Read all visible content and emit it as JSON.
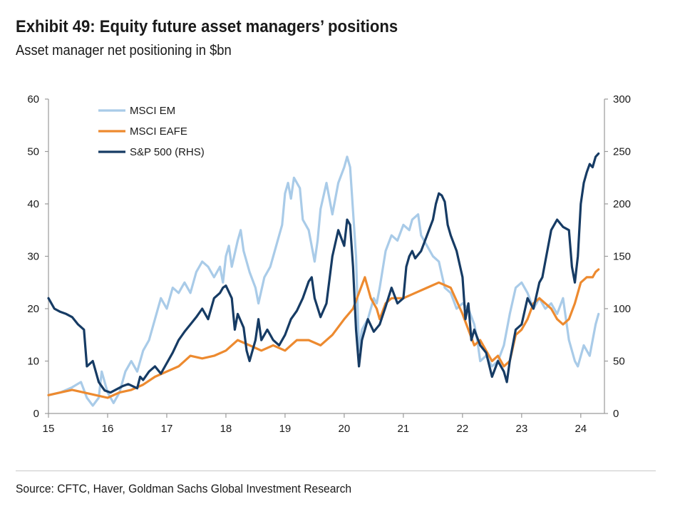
{
  "header": {
    "title": "Exhibit 49: Equity future asset managers’ positions",
    "subtitle": "Asset manager net positioning in $bn"
  },
  "footer": {
    "source": "Source: CFTC, Haver, Goldman Sachs Global Investment Research"
  },
  "chart_data": {
    "type": "line",
    "title": "Exhibit 49: Equity future asset managers’ positions",
    "subtitle": "Asset manager net positioning in $bn",
    "xlabel": "",
    "ylabel": "",
    "x_ticks": [
      "15",
      "16",
      "17",
      "18",
      "19",
      "20",
      "21",
      "22",
      "23",
      "24"
    ],
    "x_range": [
      15,
      24.4
    ],
    "y_left": {
      "range": [
        0,
        60
      ],
      "ticks": [
        "0",
        "10",
        "20",
        "30",
        "40",
        "50",
        "60"
      ]
    },
    "y_right": {
      "range": [
        0,
        300
      ],
      "ticks": [
        "0",
        "50",
        "100",
        "150",
        "200",
        "250",
        "300"
      ]
    },
    "legend": [
      "MSCI EM",
      "MSCI EAFE",
      "S&P 500 (RHS)"
    ],
    "legend_position": "top-left",
    "grid": false,
    "series": [
      {
        "name": "MSCI EM",
        "axis": "left",
        "color": "#a9cbe8",
        "points": [
          [
            15.0,
            3.5
          ],
          [
            15.2,
            4
          ],
          [
            15.4,
            5
          ],
          [
            15.55,
            6
          ],
          [
            15.65,
            3
          ],
          [
            15.75,
            1.5
          ],
          [
            15.85,
            3
          ],
          [
            15.9,
            8
          ],
          [
            16.0,
            4
          ],
          [
            16.1,
            2
          ],
          [
            16.2,
            4
          ],
          [
            16.3,
            8
          ],
          [
            16.4,
            10
          ],
          [
            16.5,
            8
          ],
          [
            16.6,
            12
          ],
          [
            16.7,
            14
          ],
          [
            16.8,
            18
          ],
          [
            16.9,
            22
          ],
          [
            17.0,
            20
          ],
          [
            17.1,
            24
          ],
          [
            17.2,
            23
          ],
          [
            17.3,
            25
          ],
          [
            17.4,
            23
          ],
          [
            17.5,
            27
          ],
          [
            17.6,
            29
          ],
          [
            17.7,
            28
          ],
          [
            17.8,
            26
          ],
          [
            17.9,
            28
          ],
          [
            17.95,
            25
          ],
          [
            18.0,
            30
          ],
          [
            18.05,
            32
          ],
          [
            18.1,
            28
          ],
          [
            18.2,
            33
          ],
          [
            18.25,
            35
          ],
          [
            18.3,
            31
          ],
          [
            18.4,
            27
          ],
          [
            18.5,
            24
          ],
          [
            18.55,
            21
          ],
          [
            18.65,
            26
          ],
          [
            18.75,
            28
          ],
          [
            18.85,
            32
          ],
          [
            18.95,
            36
          ],
          [
            19.0,
            42
          ],
          [
            19.05,
            44
          ],
          [
            19.1,
            41
          ],
          [
            19.15,
            45
          ],
          [
            19.25,
            43
          ],
          [
            19.3,
            37
          ],
          [
            19.4,
            35
          ],
          [
            19.5,
            29
          ],
          [
            19.55,
            33
          ],
          [
            19.6,
            39
          ],
          [
            19.7,
            44
          ],
          [
            19.8,
            38
          ],
          [
            19.9,
            44
          ],
          [
            20.0,
            47
          ],
          [
            20.05,
            49
          ],
          [
            20.1,
            47
          ],
          [
            20.2,
            30
          ],
          [
            20.25,
            12
          ],
          [
            20.3,
            16
          ],
          [
            20.4,
            18
          ],
          [
            20.5,
            22
          ],
          [
            20.55,
            21
          ],
          [
            20.6,
            24
          ],
          [
            20.7,
            31
          ],
          [
            20.8,
            34
          ],
          [
            20.9,
            33
          ],
          [
            21.0,
            36
          ],
          [
            21.1,
            35
          ],
          [
            21.15,
            37
          ],
          [
            21.25,
            38
          ],
          [
            21.3,
            34
          ],
          [
            21.4,
            32
          ],
          [
            21.5,
            30
          ],
          [
            21.6,
            29
          ],
          [
            21.7,
            24
          ],
          [
            21.8,
            23
          ],
          [
            21.9,
            20
          ],
          [
            22.0,
            21
          ],
          [
            22.1,
            20
          ],
          [
            22.2,
            17
          ],
          [
            22.25,
            14
          ],
          [
            22.3,
            10
          ],
          [
            22.4,
            11
          ],
          [
            22.5,
            9
          ],
          [
            22.6,
            10
          ],
          [
            22.7,
            13
          ],
          [
            22.8,
            19
          ],
          [
            22.9,
            24
          ],
          [
            23.0,
            25
          ],
          [
            23.1,
            23
          ],
          [
            23.2,
            20
          ],
          [
            23.3,
            22
          ],
          [
            23.4,
            20
          ],
          [
            23.5,
            21
          ],
          [
            23.6,
            19
          ],
          [
            23.7,
            22
          ],
          [
            23.8,
            14
          ],
          [
            23.9,
            10
          ],
          [
            23.95,
            9
          ],
          [
            24.05,
            13
          ],
          [
            24.15,
            11
          ],
          [
            24.25,
            17
          ],
          [
            24.3,
            19
          ]
        ]
      },
      {
        "name": "MSCI EAFE",
        "axis": "left",
        "color": "#ed8a2f",
        "points": [
          [
            15.0,
            3.5
          ],
          [
            15.2,
            4
          ],
          [
            15.4,
            4.5
          ],
          [
            15.6,
            4
          ],
          [
            15.8,
            3.5
          ],
          [
            16.0,
            3
          ],
          [
            16.2,
            4
          ],
          [
            16.4,
            4.5
          ],
          [
            16.6,
            5.5
          ],
          [
            16.8,
            7
          ],
          [
            17.0,
            8
          ],
          [
            17.2,
            9
          ],
          [
            17.4,
            11
          ],
          [
            17.6,
            10.5
          ],
          [
            17.8,
            11
          ],
          [
            18.0,
            12
          ],
          [
            18.2,
            14
          ],
          [
            18.4,
            13
          ],
          [
            18.6,
            12
          ],
          [
            18.8,
            13
          ],
          [
            19.0,
            12
          ],
          [
            19.2,
            14
          ],
          [
            19.4,
            14
          ],
          [
            19.6,
            13
          ],
          [
            19.8,
            15
          ],
          [
            20.0,
            18
          ],
          [
            20.15,
            20
          ],
          [
            20.25,
            23
          ],
          [
            20.35,
            26
          ],
          [
            20.45,
            22
          ],
          [
            20.55,
            20
          ],
          [
            20.6,
            18
          ],
          [
            20.7,
            21
          ],
          [
            20.8,
            22
          ],
          [
            21.0,
            22
          ],
          [
            21.2,
            23
          ],
          [
            21.4,
            24
          ],
          [
            21.6,
            25
          ],
          [
            21.8,
            24
          ],
          [
            22.0,
            19
          ],
          [
            22.1,
            16
          ],
          [
            22.2,
            13
          ],
          [
            22.3,
            14
          ],
          [
            22.4,
            12
          ],
          [
            22.5,
            10
          ],
          [
            22.6,
            11
          ],
          [
            22.7,
            9
          ],
          [
            22.8,
            10
          ],
          [
            22.9,
            15
          ],
          [
            23.0,
            16
          ],
          [
            23.1,
            18
          ],
          [
            23.2,
            21
          ],
          [
            23.3,
            22
          ],
          [
            23.4,
            21
          ],
          [
            23.5,
            20
          ],
          [
            23.6,
            18
          ],
          [
            23.7,
            17
          ],
          [
            23.8,
            18
          ],
          [
            23.9,
            21
          ],
          [
            24.0,
            25
          ],
          [
            24.1,
            26
          ],
          [
            24.2,
            26
          ],
          [
            24.25,
            27
          ],
          [
            24.3,
            27.5
          ]
        ]
      },
      {
        "name": "S&P 500 (RHS)",
        "axis": "right",
        "color": "#163b64",
        "points": [
          [
            15.0,
            110
          ],
          [
            15.1,
            100
          ],
          [
            15.2,
            97
          ],
          [
            15.3,
            95
          ],
          [
            15.4,
            92
          ],
          [
            15.5,
            85
          ],
          [
            15.6,
            80
          ],
          [
            15.65,
            45
          ],
          [
            15.75,
            50
          ],
          [
            15.85,
            30
          ],
          [
            15.95,
            22
          ],
          [
            16.05,
            20
          ],
          [
            16.15,
            23
          ],
          [
            16.25,
            26
          ],
          [
            16.35,
            28
          ],
          [
            16.5,
            24
          ],
          [
            16.55,
            35
          ],
          [
            16.6,
            32
          ],
          [
            16.7,
            40
          ],
          [
            16.8,
            45
          ],
          [
            16.9,
            38
          ],
          [
            17.0,
            48
          ],
          [
            17.1,
            58
          ],
          [
            17.2,
            70
          ],
          [
            17.3,
            78
          ],
          [
            17.4,
            85
          ],
          [
            17.5,
            92
          ],
          [
            17.6,
            100
          ],
          [
            17.7,
            90
          ],
          [
            17.8,
            110
          ],
          [
            17.9,
            115
          ],
          [
            17.95,
            120
          ],
          [
            18.0,
            122
          ],
          [
            18.1,
            110
          ],
          [
            18.15,
            80
          ],
          [
            18.2,
            95
          ],
          [
            18.3,
            82
          ],
          [
            18.35,
            60
          ],
          [
            18.4,
            50
          ],
          [
            18.5,
            70
          ],
          [
            18.55,
            90
          ],
          [
            18.6,
            70
          ],
          [
            18.7,
            80
          ],
          [
            18.8,
            70
          ],
          [
            18.9,
            65
          ],
          [
            19.0,
            75
          ],
          [
            19.1,
            90
          ],
          [
            19.2,
            98
          ],
          [
            19.3,
            110
          ],
          [
            19.4,
            126
          ],
          [
            19.45,
            130
          ],
          [
            19.5,
            110
          ],
          [
            19.6,
            92
          ],
          [
            19.7,
            105
          ],
          [
            19.8,
            150
          ],
          [
            19.9,
            175
          ],
          [
            20.0,
            160
          ],
          [
            20.05,
            185
          ],
          [
            20.1,
            180
          ],
          [
            20.15,
            140
          ],
          [
            20.2,
            80
          ],
          [
            20.25,
            45
          ],
          [
            20.3,
            70
          ],
          [
            20.4,
            90
          ],
          [
            20.5,
            78
          ],
          [
            20.6,
            85
          ],
          [
            20.7,
            102
          ],
          [
            20.8,
            120
          ],
          [
            20.9,
            105
          ],
          [
            21.0,
            110
          ],
          [
            21.05,
            140
          ],
          [
            21.1,
            150
          ],
          [
            21.15,
            155
          ],
          [
            21.2,
            148
          ],
          [
            21.3,
            155
          ],
          [
            21.4,
            170
          ],
          [
            21.5,
            185
          ],
          [
            21.55,
            200
          ],
          [
            21.6,
            210
          ],
          [
            21.65,
            208
          ],
          [
            21.7,
            202
          ],
          [
            21.75,
            180
          ],
          [
            21.8,
            170
          ],
          [
            21.9,
            155
          ],
          [
            22.0,
            130
          ],
          [
            22.05,
            90
          ],
          [
            22.1,
            105
          ],
          [
            22.15,
            70
          ],
          [
            22.2,
            80
          ],
          [
            22.3,
            65
          ],
          [
            22.4,
            58
          ],
          [
            22.5,
            35
          ],
          [
            22.6,
            50
          ],
          [
            22.7,
            40
          ],
          [
            22.75,
            30
          ],
          [
            22.8,
            50
          ],
          [
            22.9,
            80
          ],
          [
            23.0,
            85
          ],
          [
            23.1,
            110
          ],
          [
            23.2,
            100
          ],
          [
            23.3,
            125
          ],
          [
            23.35,
            130
          ],
          [
            23.4,
            145
          ],
          [
            23.5,
            175
          ],
          [
            23.6,
            185
          ],
          [
            23.7,
            178
          ],
          [
            23.8,
            175
          ],
          [
            23.85,
            140
          ],
          [
            23.9,
            125
          ],
          [
            23.95,
            150
          ],
          [
            24.0,
            200
          ],
          [
            24.05,
            220
          ],
          [
            24.1,
            230
          ],
          [
            24.15,
            238
          ],
          [
            24.2,
            235
          ],
          [
            24.25,
            245
          ],
          [
            24.3,
            248
          ]
        ]
      }
    ]
  }
}
